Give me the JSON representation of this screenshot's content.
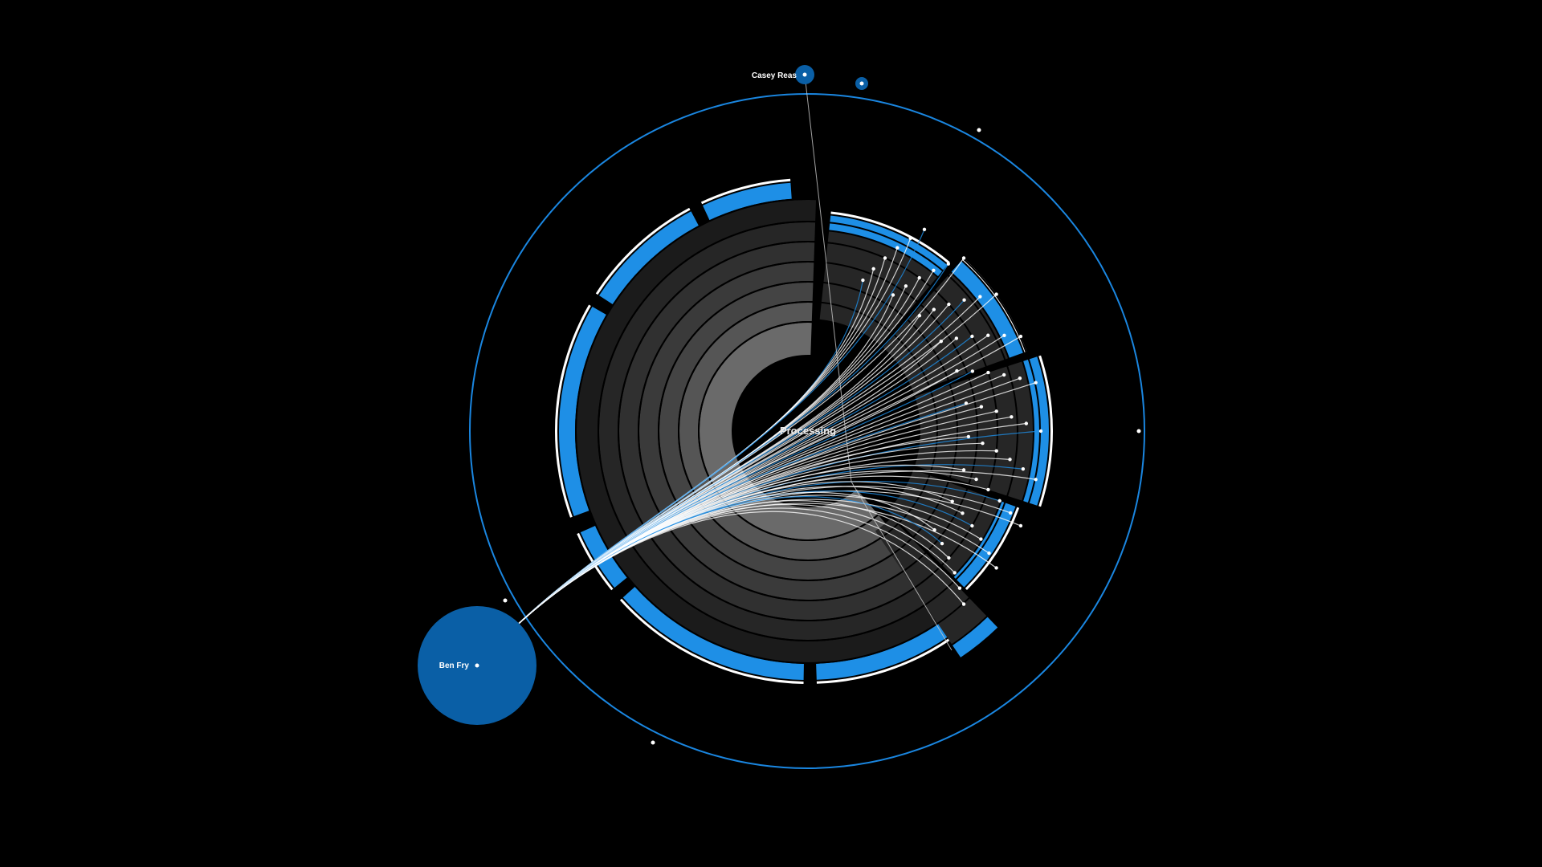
{
  "center_label": "Processing",
  "authors": [
    {
      "name": "Casey Reas"
    },
    {
      "name": "Ben Fry"
    }
  ],
  "colors": {
    "background": "#000000",
    "accent_blue": "#1e8fe6",
    "author_node": "#0a5fa6",
    "orbit_ring": "#1a86e0",
    "edge": "#ffffff",
    "ring_grays": [
      "#1b1b1b",
      "#262626",
      "#303030",
      "#3a3a3a",
      "#444444",
      "#555555",
      "#6a6a6a"
    ]
  }
}
